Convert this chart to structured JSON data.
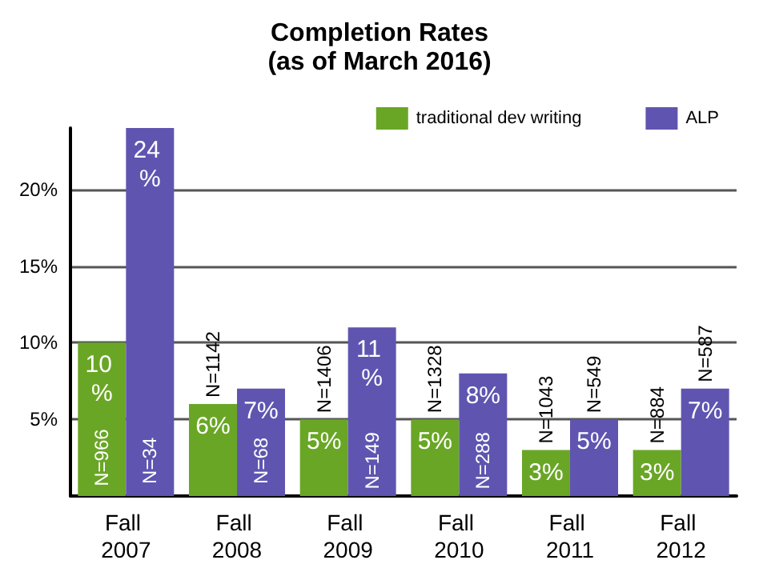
{
  "chart_data": {
    "type": "bar",
    "title": "Completion Rates",
    "subtitle": "(as of March 2016)",
    "categories": [
      "Fall 2007",
      "Fall 2008",
      "Fall 2009",
      "Fall 2010",
      "Fall 2011",
      "Fall 2012"
    ],
    "series": [
      {
        "name": "traditional dev writing",
        "color": "#6aa626",
        "values": [
          10,
          6,
          5,
          5,
          3,
          3
        ],
        "value_labels": [
          "10 %",
          "6%",
          "5%",
          "5%",
          "3%",
          "3%"
        ]
      },
      {
        "name": "ALP",
        "color": "#5f55b0",
        "values": [
          24,
          7,
          11,
          8,
          5,
          7
        ],
        "value_labels": [
          "24 %",
          "7%",
          "11 %",
          "8%",
          "5%",
          "7%"
        ]
      }
    ],
    "annotations": [
      {
        "text": "N=966",
        "x": "Fall 2007",
        "y": 2.5
      },
      {
        "text": "N=34",
        "x": "Fall 2007",
        "y": 2.3
      },
      {
        "text": "N=1142",
        "x": "Fall 2008",
        "y": 6
      },
      {
        "text": "N=68",
        "x": "Fall 2008",
        "y": 2.3
      },
      {
        "text": "N=1406",
        "x": "Fall 2009",
        "y": 5
      },
      {
        "text": "N=149",
        "x": "Fall 2009",
        "y": 2.3
      },
      {
        "text": "N=1328",
        "x": "Fall 2010",
        "y": 5
      },
      {
        "text": "N=288",
        "x": "Fall 2010",
        "y": 2.3
      },
      {
        "text": "N=1043",
        "x": "Fall 2011",
        "y": 3
      },
      {
        "text": "N=549",
        "x": "Fall 2011",
        "y": 5
      },
      {
        "text": "N=884",
        "x": "Fall 2012",
        "y": 3
      },
      {
        "text": "N=587",
        "x": "Fall 2012",
        "y": 7
      }
    ],
    "ylim": [
      0,
      24
    ],
    "yticks": [
      {
        "value": 5,
        "label": "5%"
      },
      {
        "value": 10,
        "label": "10%"
      },
      {
        "value": 15,
        "label": "15%"
      },
      {
        "value": 20,
        "label": "20%"
      }
    ],
    "grid": "y",
    "legend": "top right"
  }
}
